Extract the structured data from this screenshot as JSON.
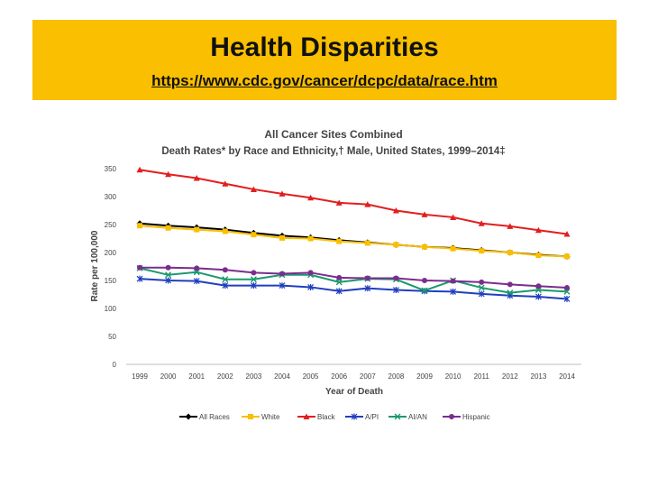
{
  "slide": {
    "title": "Health Disparities",
    "link": "https://www.cdc.gov/cancer/dcpc/data/race.htm",
    "accent": "#f9bf00"
  },
  "chart_data": {
    "type": "line",
    "title": "All Cancer Sites Combined",
    "subtitle": "Death Rates* by Race and Ethnicity,† Male, United States, 1999–2014‡",
    "xlabel": "Year of Death",
    "ylabel": "Rate per 100,000",
    "ylim": [
      0,
      350
    ],
    "yticks": [
      0,
      50,
      100,
      150,
      200,
      250,
      300,
      350
    ],
    "grid": false,
    "legend": "bottom",
    "x": [
      "1999",
      "2000",
      "2001",
      "2002",
      "2003",
      "2004",
      "2005",
      "2006",
      "2007",
      "2008",
      "2009",
      "2010",
      "2011",
      "2012",
      "2013",
      "2014"
    ],
    "series": [
      {
        "name": "All Races",
        "color": "#000000",
        "marker": "diamond",
        "values": [
          252,
          248,
          245,
          241,
          235,
          230,
          227,
          222,
          218,
          214,
          210,
          208,
          204,
          200,
          196,
          193
        ]
      },
      {
        "name": "White",
        "color": "#f9bf00",
        "marker": "square",
        "values": [
          248,
          244,
          241,
          238,
          232,
          226,
          225,
          220,
          217,
          214,
          210,
          207,
          203,
          200,
          195,
          193
        ]
      },
      {
        "name": "Black",
        "color": "#e31e1e",
        "marker": "triangle",
        "values": [
          348,
          340,
          333,
          323,
          313,
          305,
          298,
          289,
          286,
          275,
          268,
          263,
          252,
          247,
          240,
          233
        ]
      },
      {
        "name": "A/PI",
        "color": "#1f3fbf",
        "marker": "star",
        "values": [
          153,
          150,
          149,
          141,
          141,
          141,
          138,
          131,
          136,
          133,
          131,
          130,
          126,
          123,
          121,
          117
        ]
      },
      {
        "name": "AI/AN",
        "color": "#1a9a6c",
        "marker": "x",
        "values": [
          172,
          160,
          165,
          152,
          152,
          160,
          160,
          147,
          153,
          152,
          132,
          150,
          137,
          128,
          133,
          130
        ]
      },
      {
        "name": "Hispanic",
        "color": "#7b2d8e",
        "marker": "circle",
        "values": [
          173,
          173,
          172,
          169,
          164,
          162,
          164,
          155,
          154,
          154,
          150,
          149,
          147,
          143,
          140,
          137
        ]
      }
    ]
  }
}
